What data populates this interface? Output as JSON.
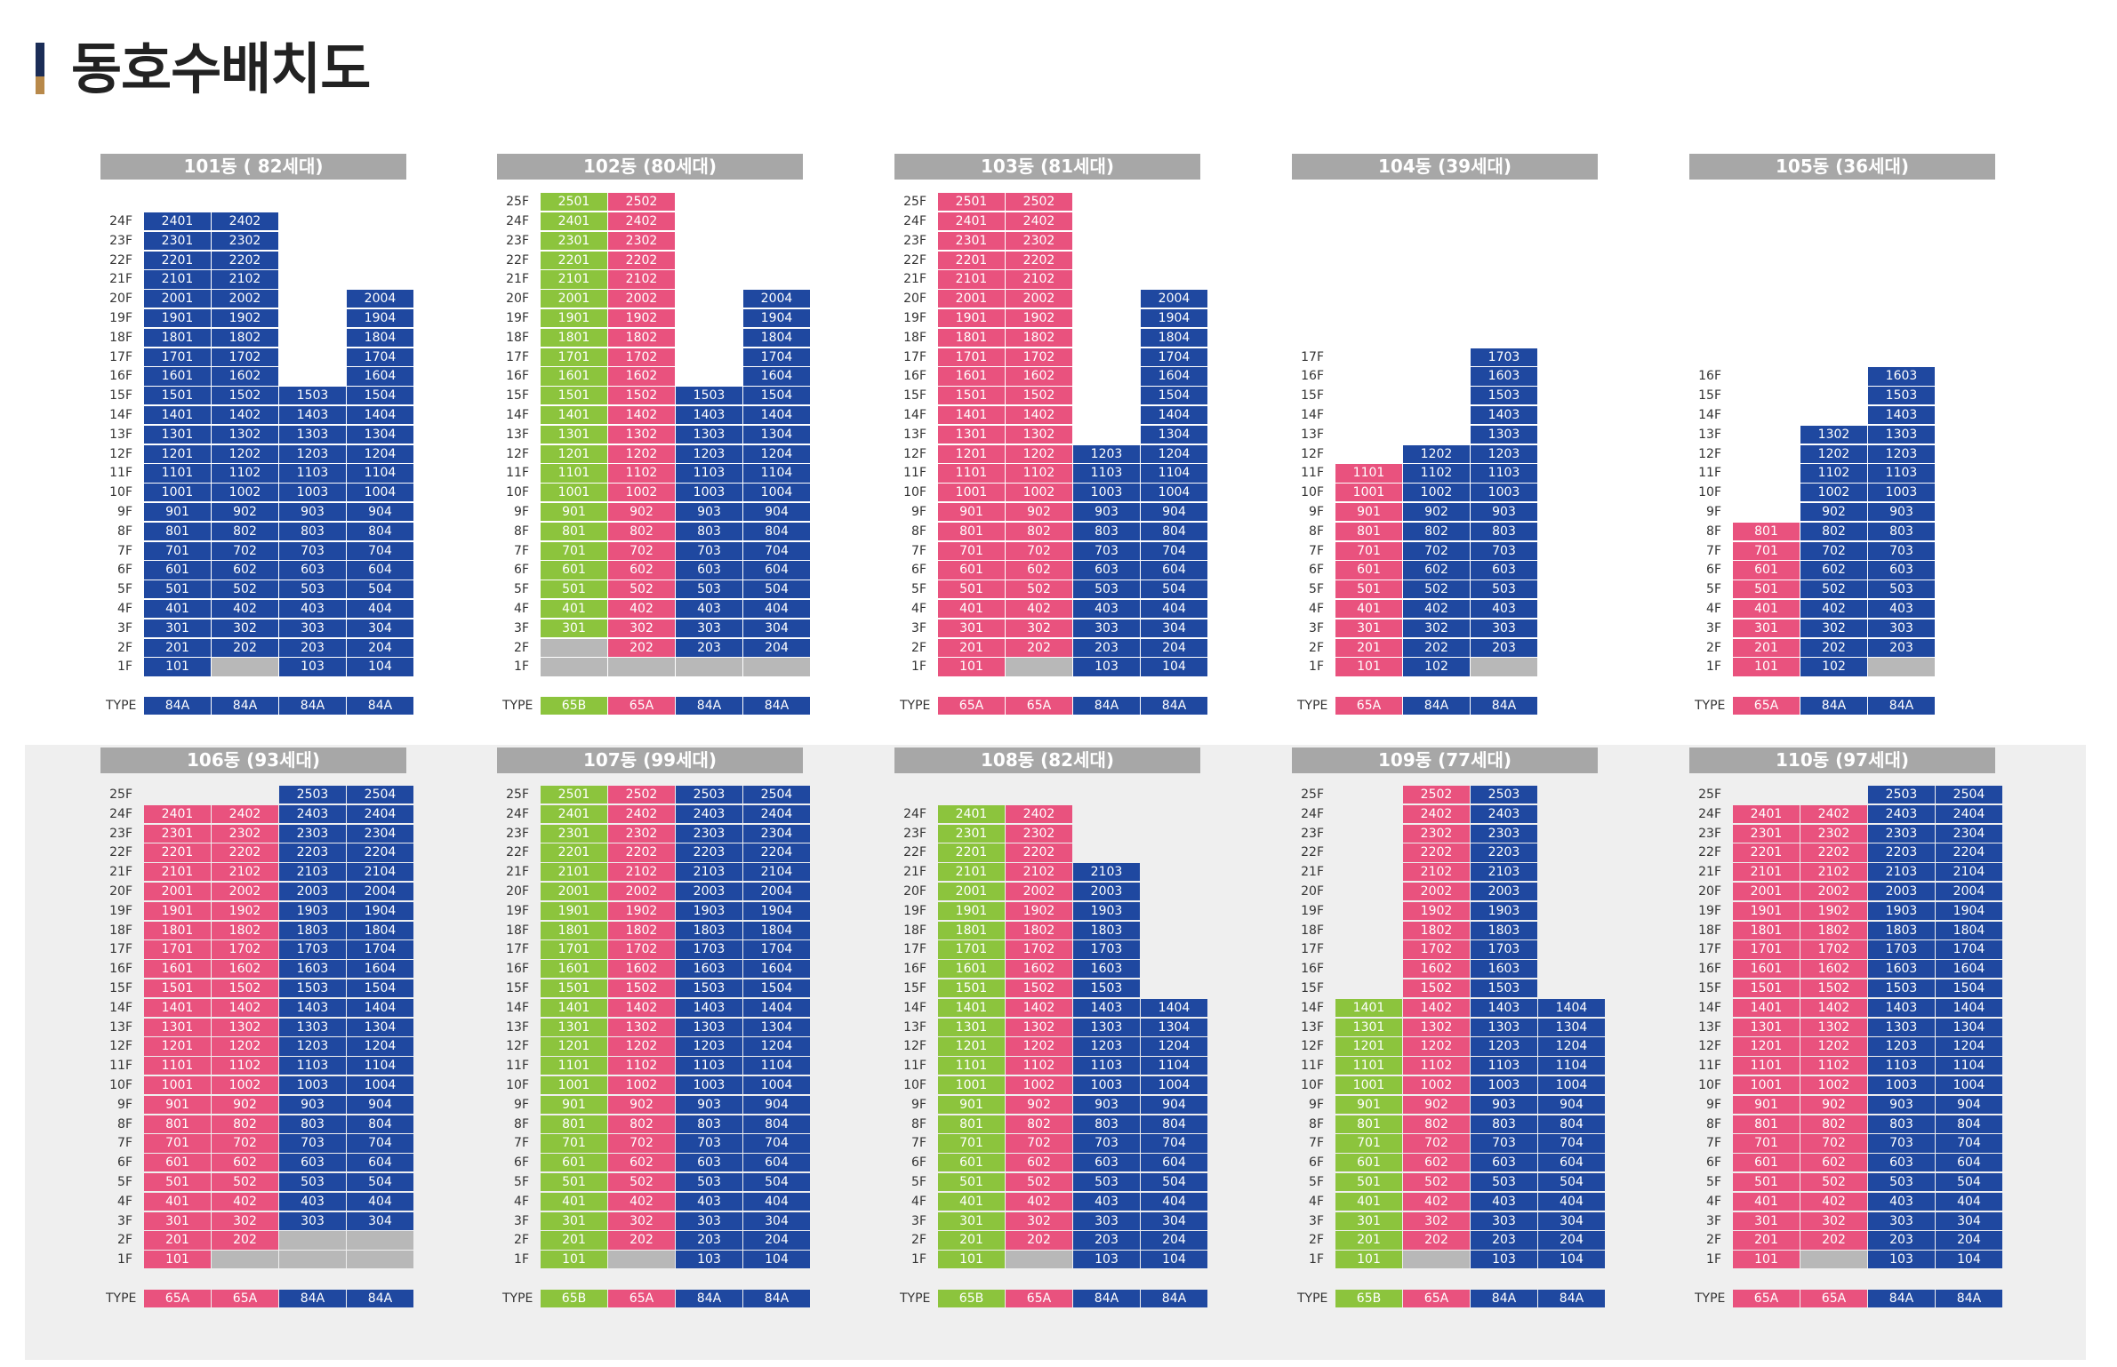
{
  "page_title": "동호수배치도",
  "type_label": "TYPE",
  "legend_colors": {
    "84A": "#1f48a0",
    "65A": "#e9527e",
    "65B": "#8cc43d",
    "empty": "#b8b8b8"
  },
  "buildings": [
    {
      "name": "101동 ( 82세대)",
      "min_floor": 1,
      "max_floor": 24,
      "columns": [
        {
          "type": "84A",
          "bottom": 1,
          "top": 24,
          "col": 1,
          "empty_floors": []
        },
        {
          "type": "84A",
          "bottom": 1,
          "top": 24,
          "col": 2,
          "empty_floors": [
            1
          ]
        },
        {
          "type": "84A",
          "bottom": 1,
          "top": 15,
          "col": 3,
          "empty_floors": []
        },
        {
          "type": "84A",
          "bottom": 1,
          "top": 20,
          "col": 4,
          "empty_floors": []
        }
      ]
    },
    {
      "name": "102동 (80세대)",
      "min_floor": 1,
      "max_floor": 25,
      "columns": [
        {
          "type": "65B",
          "bottom": 1,
          "top": 25,
          "col": 1,
          "empty_floors": [
            1,
            2
          ]
        },
        {
          "type": "65A",
          "bottom": 1,
          "top": 25,
          "col": 2,
          "empty_floors": [
            1
          ]
        },
        {
          "type": "84A",
          "bottom": 1,
          "top": 15,
          "col": 3,
          "empty_floors": [
            1
          ]
        },
        {
          "type": "84A",
          "bottom": 1,
          "top": 20,
          "col": 4,
          "empty_floors": [
            1
          ]
        }
      ]
    },
    {
      "name": "103동 (81세대)",
      "min_floor": 1,
      "max_floor": 25,
      "columns": [
        {
          "type": "65A",
          "bottom": 1,
          "top": 25,
          "col": 1,
          "empty_floors": []
        },
        {
          "type": "65A",
          "bottom": 1,
          "top": 25,
          "col": 2,
          "empty_floors": [
            1
          ]
        },
        {
          "type": "84A",
          "bottom": 1,
          "top": 12,
          "col": 3,
          "empty_floors": []
        },
        {
          "type": "84A",
          "bottom": 1,
          "top": 20,
          "col": 4,
          "empty_floors": []
        }
      ]
    },
    {
      "name": "104동 (39세대)",
      "min_floor": 1,
      "max_floor": 17,
      "columns": [
        {
          "type": "65A",
          "bottom": 1,
          "top": 11,
          "col": 1,
          "empty_floors": []
        },
        {
          "type": "84A",
          "bottom": 1,
          "top": 12,
          "col": 2,
          "empty_floors": []
        },
        {
          "type": "84A",
          "bottom": 1,
          "top": 17,
          "col": 3,
          "empty_floors": [
            1
          ]
        }
      ]
    },
    {
      "name": "105동 (36세대)",
      "min_floor": 1,
      "max_floor": 16,
      "columns": [
        {
          "type": "65A",
          "bottom": 1,
          "top": 8,
          "col": 1,
          "empty_floors": []
        },
        {
          "type": "84A",
          "bottom": 1,
          "top": 13,
          "col": 2,
          "empty_floors": []
        },
        {
          "type": "84A",
          "bottom": 1,
          "top": 16,
          "col": 3,
          "empty_floors": [
            1
          ]
        }
      ]
    },
    {
      "name": "106동 (93세대)",
      "min_floor": 1,
      "max_floor": 25,
      "columns": [
        {
          "type": "65A",
          "bottom": 1,
          "top": 24,
          "col": 1,
          "empty_floors": []
        },
        {
          "type": "65A",
          "bottom": 1,
          "top": 24,
          "col": 2,
          "empty_floors": [
            1
          ]
        },
        {
          "type": "84A",
          "bottom": 1,
          "top": 25,
          "col": 3,
          "empty_floors": [
            1,
            2
          ]
        },
        {
          "type": "84A",
          "bottom": 1,
          "top": 25,
          "col": 4,
          "empty_floors": [
            1,
            2
          ]
        }
      ]
    },
    {
      "name": "107동 (99세대)",
      "min_floor": 1,
      "max_floor": 25,
      "columns": [
        {
          "type": "65B",
          "bottom": 1,
          "top": 25,
          "col": 1,
          "empty_floors": []
        },
        {
          "type": "65A",
          "bottom": 1,
          "top": 25,
          "col": 2,
          "empty_floors": [
            1
          ]
        },
        {
          "type": "84A",
          "bottom": 1,
          "top": 25,
          "col": 3,
          "empty_floors": []
        },
        {
          "type": "84A",
          "bottom": 1,
          "top": 25,
          "col": 4,
          "empty_floors": []
        }
      ]
    },
    {
      "name": "108동 (82세대)",
      "min_floor": 1,
      "max_floor": 24,
      "columns": [
        {
          "type": "65B",
          "bottom": 1,
          "top": 24,
          "col": 1,
          "empty_floors": []
        },
        {
          "type": "65A",
          "bottom": 1,
          "top": 24,
          "col": 2,
          "empty_floors": [
            1
          ]
        },
        {
          "type": "84A",
          "bottom": 1,
          "top": 21,
          "col": 3,
          "empty_floors": []
        },
        {
          "type": "84A",
          "bottom": 1,
          "top": 14,
          "col": 4,
          "empty_floors": []
        }
      ]
    },
    {
      "name": "109동 (77세대)",
      "min_floor": 1,
      "max_floor": 25,
      "columns": [
        {
          "type": "65B",
          "bottom": 1,
          "top": 14,
          "col": 1,
          "empty_floors": []
        },
        {
          "type": "65A",
          "bottom": 1,
          "top": 25,
          "col": 2,
          "empty_floors": [
            1
          ]
        },
        {
          "type": "84A",
          "bottom": 1,
          "top": 25,
          "col": 3,
          "empty_floors": []
        },
        {
          "type": "84A",
          "bottom": 1,
          "top": 14,
          "col": 4,
          "empty_floors": []
        }
      ]
    },
    {
      "name": "110동 (97세대)",
      "min_floor": 1,
      "max_floor": 25,
      "columns": [
        {
          "type": "65A",
          "bottom": 1,
          "top": 24,
          "col": 1,
          "empty_floors": []
        },
        {
          "type": "65A",
          "bottom": 1,
          "top": 24,
          "col": 2,
          "empty_floors": [
            1
          ]
        },
        {
          "type": "84A",
          "bottom": 1,
          "top": 25,
          "col": 3,
          "empty_floors": []
        },
        {
          "type": "84A",
          "bottom": 1,
          "top": 25,
          "col": 4,
          "empty_floors": []
        }
      ]
    }
  ]
}
